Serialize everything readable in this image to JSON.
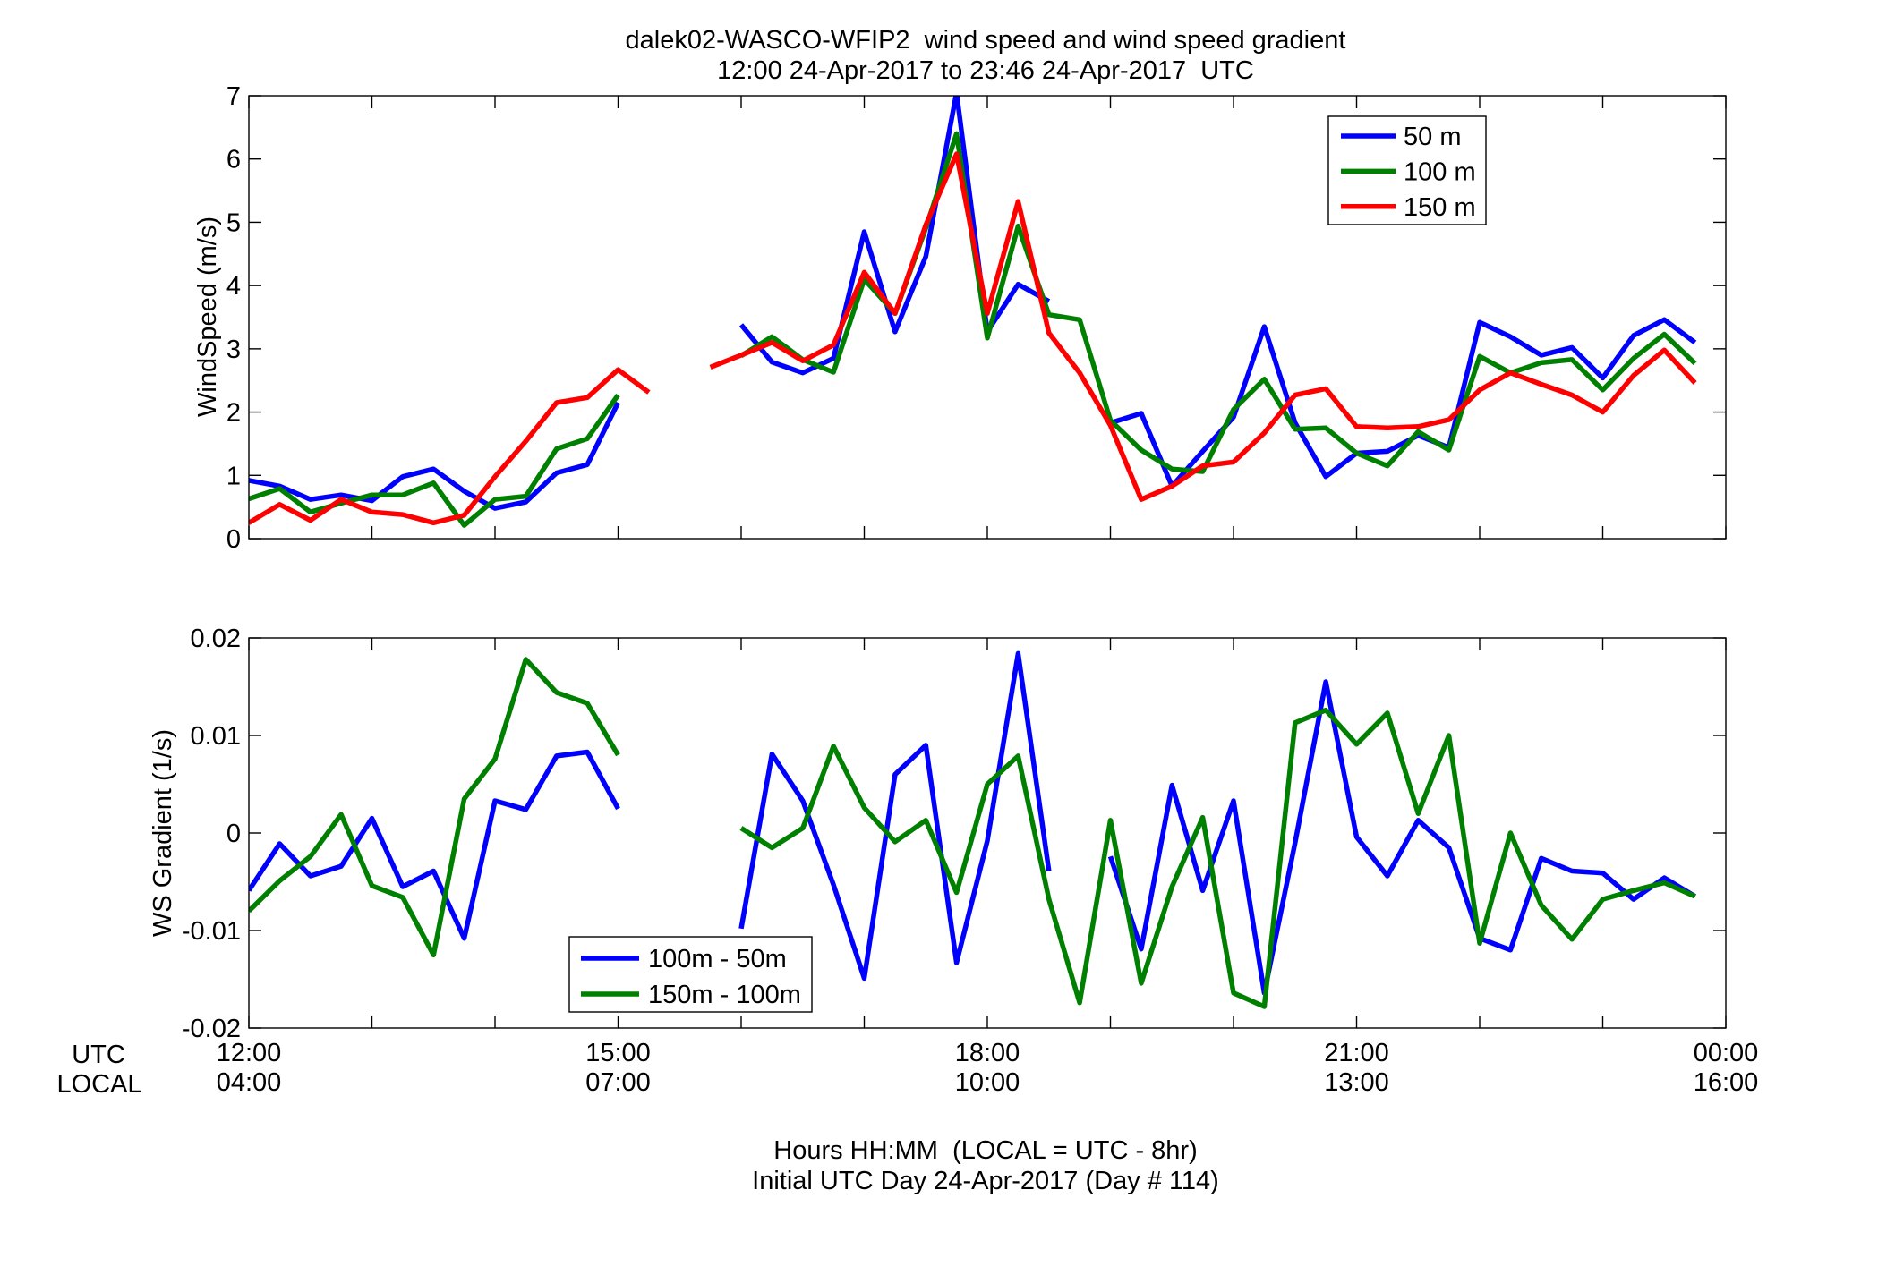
{
  "figure": {
    "title_lines": [
      "dalek02-WASCO-WFIP2  wind speed and wind speed gradient",
      "12:00 24-Apr-2017 to 23:46 24-Apr-2017  UTC"
    ],
    "x_row_labels": [
      "UTC",
      "LOCAL"
    ],
    "xlabel_lines": [
      "Hours HH:MM  (LOCAL = UTC - 8hr)",
      "Initial UTC Day 24-Apr-2017 (Day # 114)"
    ]
  },
  "chart_data": [
    {
      "type": "line",
      "ylabel": "WindSpeed (m/s)",
      "xlim": [
        "12:00",
        "00:00"
      ],
      "ylim": [
        0,
        7
      ],
      "yticks": [
        0,
        1,
        2,
        3,
        4,
        5,
        6,
        7
      ],
      "grid": false,
      "legend": "top-right",
      "x": [
        "12:00",
        "12:15",
        "12:30",
        "12:45",
        "13:00",
        "13:15",
        "13:30",
        "13:45",
        "14:00",
        "14:15",
        "14:30",
        "14:45",
        "15:00",
        "15:15",
        "15:30",
        "15:45",
        "16:00",
        "16:15",
        "16:30",
        "16:45",
        "17:00",
        "17:15",
        "17:30",
        "17:45",
        "18:00",
        "18:15",
        "18:30",
        "18:45",
        "19:00",
        "19:15",
        "19:30",
        "19:45",
        "20:00",
        "20:15",
        "20:30",
        "20:45",
        "21:00",
        "21:15",
        "21:30",
        "21:45",
        "22:00",
        "22:15",
        "22:30",
        "22:45",
        "23:00",
        "23:15",
        "23:30",
        "23:45"
      ],
      "series": [
        {
          "name": "50 m",
          "color": "#0000FF",
          "values": [
            0.92,
            0.83,
            0.62,
            0.69,
            0.6,
            0.98,
            1.1,
            0.75,
            0.48,
            0.58,
            1.04,
            1.17,
            2.15,
            null,
            null,
            null,
            3.38,
            2.79,
            2.62,
            2.85,
            4.85,
            3.27,
            4.46,
            7.05,
            3.27,
            4.02,
            3.75,
            null,
            1.83,
            1.98,
            0.83,
            1.38,
            1.92,
            3.35,
            1.83,
            0.98,
            1.35,
            1.38,
            1.63,
            1.44,
            3.42,
            3.19,
            2.9,
            3.02,
            2.54,
            3.21,
            3.46,
            3.1
          ]
        },
        {
          "name": "100 m",
          "color": "#008000",
          "values": [
            0.63,
            0.79,
            0.42,
            0.56,
            0.69,
            0.69,
            0.88,
            0.21,
            0.62,
            0.67,
            1.42,
            1.58,
            2.27,
            null,
            null,
            null,
            2.89,
            3.19,
            2.83,
            2.63,
            4.1,
            3.56,
            4.91,
            6.4,
            3.17,
            4.94,
            3.54,
            3.46,
            1.87,
            1.4,
            1.1,
            1.06,
            2.04,
            2.52,
            1.73,
            1.75,
            1.35,
            1.15,
            1.69,
            1.4,
            2.88,
            2.62,
            2.78,
            2.83,
            2.35,
            2.85,
            3.23,
            2.77
          ]
        },
        {
          "name": "150 m",
          "color": "#FF0000",
          "values": [
            0.25,
            0.54,
            0.29,
            0.62,
            0.42,
            0.38,
            0.25,
            0.37,
            0.98,
            1.54,
            2.15,
            2.23,
            2.67,
            2.31,
            null,
            2.71,
            2.9,
            3.1,
            2.81,
            3.06,
            4.21,
            3.56,
            4.96,
            6.08,
            3.56,
            5.33,
            3.25,
            2.62,
            1.79,
            0.62,
            0.83,
            1.15,
            1.21,
            1.67,
            2.27,
            2.37,
            1.77,
            1.75,
            1.77,
            1.88,
            2.35,
            2.62,
            2.44,
            2.27,
            2.0,
            2.58,
            2.98,
            2.46
          ]
        }
      ]
    },
    {
      "type": "line",
      "ylabel": "WS Gradient (1/s)",
      "xlim": [
        "12:00",
        "00:00"
      ],
      "ylim": [
        -0.02,
        0.02
      ],
      "yticks": [
        -0.02,
        -0.01,
        0,
        0.01,
        0.02
      ],
      "x_tick_labels": {
        "utc": [
          "12:00",
          "15:00",
          "18:00",
          "21:00",
          "00:00"
        ],
        "local": [
          "04:00",
          "07:00",
          "10:00",
          "13:00",
          "16:00"
        ]
      },
      "grid": false,
      "legend": "lower-left",
      "x": [
        "12:00",
        "12:15",
        "12:30",
        "12:45",
        "13:00",
        "13:15",
        "13:30",
        "13:45",
        "14:00",
        "14:15",
        "14:30",
        "14:45",
        "15:00",
        "15:15",
        "15:30",
        "15:45",
        "16:00",
        "16:15",
        "16:30",
        "16:45",
        "17:00",
        "17:15",
        "17:30",
        "17:45",
        "18:00",
        "18:15",
        "18:30",
        "18:45",
        "19:00",
        "19:15",
        "19:30",
        "19:45",
        "20:00",
        "20:15",
        "20:30",
        "20:45",
        "21:00",
        "21:15",
        "21:30",
        "21:45",
        "22:00",
        "22:15",
        "22:30",
        "22:45",
        "23:00",
        "23:15",
        "23:30",
        "23:45"
      ],
      "series": [
        {
          "name": "100m - 50m",
          "color": "#0000FF",
          "values": [
            -0.0059,
            -0.0011,
            -0.0044,
            -0.0034,
            0.0015,
            -0.0055,
            -0.0039,
            -0.0108,
            0.0033,
            0.0024,
            0.0079,
            0.0083,
            0.0025,
            null,
            null,
            null,
            -0.0098,
            0.0081,
            0.0033,
            -0.0053,
            -0.0149,
            0.006,
            0.009,
            -0.0133,
            -0.0008,
            0.0184,
            -0.0039,
            null,
            -0.0024,
            -0.0119,
            0.0049,
            -0.0059,
            0.0033,
            -0.0164,
            -0.001,
            0.0155,
            -0.0004,
            -0.0044,
            0.0013,
            -0.0015,
            -0.0108,
            -0.012,
            -0.0026,
            -0.0039,
            -0.0041,
            -0.0068,
            -0.0046,
            -0.0065
          ]
        },
        {
          "name": "150m - 100m",
          "color": "#008000",
          "values": [
            -0.008,
            -0.0049,
            -0.0024,
            0.0019,
            -0.0054,
            -0.0066,
            -0.0125,
            0.0035,
            0.0076,
            0.0178,
            0.0144,
            0.0133,
            0.008,
            null,
            null,
            null,
            0.0005,
            -0.0015,
            0.0005,
            0.0089,
            0.0026,
            -0.0009,
            0.0013,
            -0.0061,
            0.005,
            0.0079,
            -0.0068,
            -0.0174,
            0.0013,
            -0.0154,
            -0.0055,
            0.0016,
            -0.0164,
            -0.0178,
            0.0113,
            0.0126,
            0.0091,
            0.0123,
            0.002,
            0.01,
            -0.0113,
            0.0,
            -0.0074,
            -0.0109,
            -0.0068,
            -0.0059,
            -0.0051,
            -0.0065
          ]
        }
      ]
    }
  ]
}
